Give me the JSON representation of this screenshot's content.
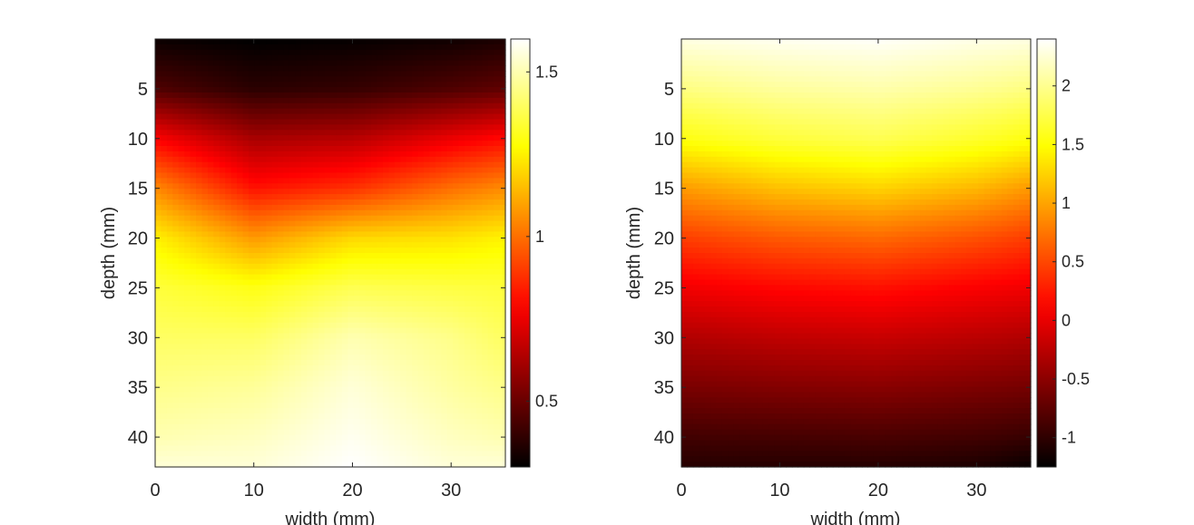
{
  "chart_data": [
    {
      "type": "heatmap",
      "title": "",
      "xlabel": "width (mm)",
      "ylabel": "depth (mm)",
      "xlim": [
        0,
        35.5
      ],
      "ylim": [
        43,
        0
      ],
      "x_ticks": [
        0,
        10,
        20,
        30
      ],
      "y_ticks": [
        5,
        10,
        15,
        20,
        25,
        30,
        35,
        40
      ],
      "colormap": "hot",
      "colorbar": {
        "clim": [
          0.3,
          1.6
        ],
        "ticks": [
          0.5,
          1,
          1.5
        ],
        "tick_labels": [
          "0.5",
          "1",
          "1.5"
        ]
      },
      "grid": false,
      "sampled_values": {
        "x": [
          0,
          10,
          20,
          30,
          35
        ],
        "y": [
          0,
          5,
          10,
          15,
          20,
          25,
          30,
          35,
          40,
          43
        ],
        "z": [
          [
            0.32,
            0.3,
            0.31,
            0.33,
            0.35
          ],
          [
            0.45,
            0.38,
            0.4,
            0.45,
            0.48
          ],
          [
            0.78,
            0.62,
            0.65,
            0.75,
            0.8
          ],
          [
            1.05,
            0.82,
            0.88,
            1.0,
            1.05
          ],
          [
            1.25,
            1.08,
            1.2,
            1.22,
            1.25
          ],
          [
            1.35,
            1.3,
            1.38,
            1.36,
            1.35
          ],
          [
            1.4,
            1.4,
            1.5,
            1.45,
            1.4
          ],
          [
            1.45,
            1.47,
            1.55,
            1.48,
            1.45
          ],
          [
            1.5,
            1.52,
            1.58,
            1.52,
            1.5
          ],
          [
            1.55,
            1.55,
            1.6,
            1.55,
            1.55
          ]
        ]
      }
    },
    {
      "type": "heatmap",
      "title": "",
      "xlabel": "width (mm)",
      "ylabel": "depth (mm)",
      "xlim": [
        0,
        35.5
      ],
      "ylim": [
        43,
        0
      ],
      "x_ticks": [
        0,
        10,
        20,
        30
      ],
      "y_ticks": [
        5,
        10,
        15,
        20,
        25,
        30,
        35,
        40
      ],
      "colormap": "hot",
      "colorbar": {
        "clim": [
          -1.25,
          2.4
        ],
        "ticks": [
          -1,
          -0.5,
          0,
          0.5,
          1,
          1.5,
          2
        ],
        "tick_labels": [
          "-1",
          "-0.5",
          "0",
          "0.5",
          "1",
          "1.5",
          "2"
        ]
      },
      "grid": false,
      "sampled_values": {
        "x": [
          0,
          10,
          20,
          30,
          35
        ],
        "y": [
          0,
          5,
          10,
          15,
          20,
          25,
          30,
          35,
          40,
          43
        ],
        "z": [
          [
            2.3,
            2.35,
            2.38,
            2.32,
            2.3
          ],
          [
            1.95,
            2.05,
            2.1,
            2.02,
            1.95
          ],
          [
            1.55,
            1.7,
            1.78,
            1.65,
            1.55
          ],
          [
            0.95,
            1.15,
            1.25,
            1.1,
            0.95
          ],
          [
            0.45,
            0.6,
            0.68,
            0.55,
            0.45
          ],
          [
            0.05,
            0.15,
            0.2,
            0.1,
            0.05
          ],
          [
            -0.3,
            -0.22,
            -0.18,
            -0.25,
            -0.3
          ],
          [
            -0.6,
            -0.55,
            -0.52,
            -0.58,
            -0.62
          ],
          [
            -0.9,
            -0.88,
            -0.86,
            -0.9,
            -0.95
          ],
          [
            -1.05,
            -1.05,
            -1.05,
            -1.1,
            -1.2
          ]
        ]
      }
    }
  ]
}
